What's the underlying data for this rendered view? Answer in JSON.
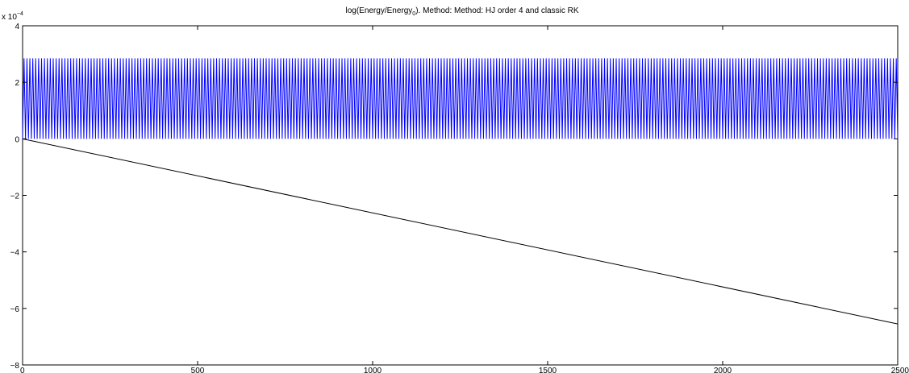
{
  "chart_data": {
    "type": "line",
    "title_prefix": "log(Energy/Energy",
    "title_sub": "0",
    "title_suffix": "). Method: Method: HJ order 4 and classic RK",
    "xlim": [
      0,
      2500
    ],
    "ylim": [
      -8,
      4
    ],
    "y_multiplier_base": "x 10",
    "y_multiplier_exp": "−4",
    "x_ticks": [
      0,
      500,
      1000,
      1500,
      2000,
      2500
    ],
    "y_ticks": [
      4,
      2,
      0,
      -2,
      -4,
      -6,
      -8
    ],
    "y_tick_labels": [
      "4",
      "2",
      "0",
      "−2",
      "−4",
      "−6",
      "−8"
    ],
    "x_tick_labels": [
      "0",
      "500",
      "1000",
      "1500",
      "2000",
      "2500"
    ],
    "grid": false,
    "series": [
      {
        "color": "#0000ff",
        "kind": "oscillation",
        "min": 0.0,
        "max": 2.85,
        "cycles": 300,
        "x_start": 0,
        "x_end": 2500
      },
      {
        "color": "#000000",
        "kind": "linear",
        "x": [
          0,
          2500
        ],
        "y": [
          0.0,
          -6.55
        ]
      }
    ]
  }
}
